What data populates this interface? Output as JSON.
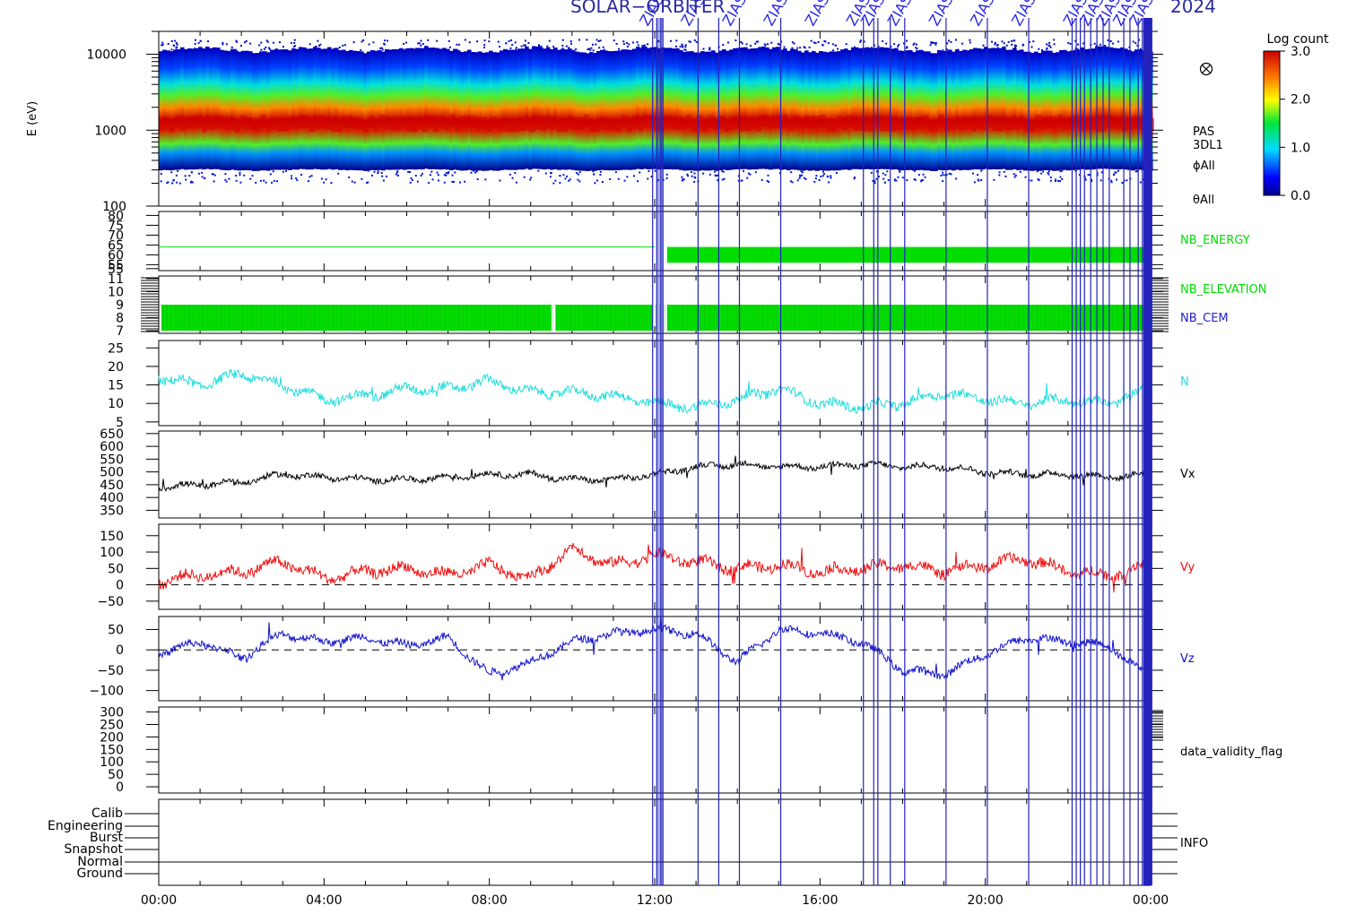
{
  "title_left": "SOLAR−ORBITER",
  "title_right": "2024",
  "colors": {
    "nb_energy": "#00dd00",
    "nb_elevation": "#00dd00",
    "nb_cem": "#2222cc",
    "n": "#22dddd",
    "vx": "#000000",
    "vy": "#ee1111",
    "vz": "#1111cc",
    "event_line": "#2222bb"
  },
  "icon": "circle-cross-icon",
  "event_label": "ZIAS",
  "chart_data": [
    {
      "type": "heatmap",
      "panel": "energy-spectrogram",
      "ylabel": "E (eV)",
      "yscale": "log",
      "ylim": [
        100,
        20000
      ],
      "yticks": [
        "10000",
        "1000",
        "100"
      ],
      "labels": [
        "PAS",
        "3DL1",
        "ϕAll",
        "θAll"
      ],
      "colorbar": {
        "title": "Log count",
        "range": [
          0.0,
          3.0
        ],
        "ticks": [
          "3.0",
          "2.0",
          "1.0",
          "0.0"
        ]
      },
      "peak_energy_ev": 1200
    },
    {
      "type": "line",
      "panel": "nb-energy",
      "series": [
        {
          "name": "NB_ENERGY"
        }
      ],
      "ylim": [
        52,
        82
      ],
      "yticks": [
        "80",
        "75",
        "70",
        "65",
        "60",
        "55",
        "55"
      ],
      "value_before_12h": 64,
      "band_after_12h": [
        56,
        64
      ]
    },
    {
      "type": "bar",
      "panel": "nb-elevation-cem",
      "series": [
        {
          "name": "NB_ELEVATION"
        },
        {
          "name": "NB_CEM"
        }
      ],
      "ylim": [
        6.8,
        11.2
      ],
      "yticks": [
        "11",
        "10",
        "9",
        "8",
        "7"
      ],
      "band": [
        7,
        9
      ]
    },
    {
      "type": "line",
      "panel": "density",
      "series": [
        {
          "name": "N",
          "points": [
            [
              0,
              17
            ],
            [
              1,
              15
            ],
            [
              2,
              18
            ],
            [
              3,
              15
            ],
            [
              4,
              11
            ],
            [
              5,
              12
            ],
            [
              6,
              14
            ],
            [
              7,
              14
            ],
            [
              8,
              16
            ],
            [
              9,
              13
            ],
            [
              10,
              13
            ],
            [
              11,
              12
            ],
            [
              12,
              10
            ],
            [
              13,
              9
            ],
            [
              14,
              11
            ],
            [
              15,
              14
            ],
            [
              16,
              10
            ],
            [
              17,
              9
            ],
            [
              18,
              10
            ],
            [
              19,
              13
            ],
            [
              20,
              11
            ],
            [
              21,
              10
            ],
            [
              22,
              11
            ],
            [
              23,
              10
            ],
            [
              24,
              14
            ]
          ]
        }
      ],
      "ylim": [
        4,
        27
      ],
      "yticks": [
        "25",
        "20",
        "15",
        "10",
        "5"
      ]
    },
    {
      "type": "line",
      "panel": "vx",
      "series": [
        {
          "name": "Vx",
          "points": [
            [
              0,
              440
            ],
            [
              1,
              450
            ],
            [
              2,
              460
            ],
            [
              3,
              490
            ],
            [
              4,
              480
            ],
            [
              5,
              470
            ],
            [
              6,
              470
            ],
            [
              7,
              480
            ],
            [
              8,
              490
            ],
            [
              9,
              490
            ],
            [
              10,
              470
            ],
            [
              11,
              470
            ],
            [
              12,
              490
            ],
            [
              13,
              520
            ],
            [
              14,
              530
            ],
            [
              15,
              520
            ],
            [
              16,
              520
            ],
            [
              17,
              530
            ],
            [
              18,
              520
            ],
            [
              19,
              520
            ],
            [
              20,
              500
            ],
            [
              21,
              490
            ],
            [
              22,
              490
            ],
            [
              23,
              480
            ],
            [
              24,
              490
            ]
          ]
        }
      ],
      "ylim": [
        320,
        660
      ],
      "yticks": [
        "650",
        "600",
        "550",
        "500",
        "450",
        "400",
        "350"
      ]
    },
    {
      "type": "line",
      "panel": "vy",
      "series": [
        {
          "name": "Vy",
          "points": [
            [
              0,
              10
            ],
            [
              1,
              30
            ],
            [
              2,
              40
            ],
            [
              3,
              70
            ],
            [
              4,
              20
            ],
            [
              5,
              40
            ],
            [
              6,
              50
            ],
            [
              7,
              30
            ],
            [
              8,
              60
            ],
            [
              9,
              20
            ],
            [
              10,
              110
            ],
            [
              11,
              60
            ],
            [
              12,
              90
            ],
            [
              13,
              70
            ],
            [
              14,
              50
            ],
            [
              15,
              60
            ],
            [
              16,
              40
            ],
            [
              17,
              50
            ],
            [
              18,
              60
            ],
            [
              19,
              40
            ],
            [
              20,
              60
            ],
            [
              21,
              80
            ],
            [
              22,
              40
            ],
            [
              23,
              30
            ],
            [
              24,
              60
            ]
          ]
        }
      ],
      "ylim": [
        -75,
        185
      ],
      "yticks": [
        "150",
        "100",
        "50",
        "0",
        "−50"
      ],
      "zero_line": "dashed"
    },
    {
      "type": "line",
      "panel": "vz",
      "series": [
        {
          "name": "Vz",
          "points": [
            [
              0,
              -10
            ],
            [
              1,
              20
            ],
            [
              2,
              -20
            ],
            [
              3,
              40
            ],
            [
              4,
              20
            ],
            [
              5,
              30
            ],
            [
              6,
              10
            ],
            [
              7,
              30
            ],
            [
              8,
              -60
            ],
            [
              9,
              -30
            ],
            [
              10,
              20
            ],
            [
              11,
              40
            ],
            [
              12,
              50
            ],
            [
              13,
              40
            ],
            [
              14,
              -30
            ],
            [
              15,
              50
            ],
            [
              16,
              40
            ],
            [
              17,
              20
            ],
            [
              18,
              -50
            ],
            [
              19,
              -60
            ],
            [
              20,
              -10
            ],
            [
              21,
              30
            ],
            [
              22,
              20
            ],
            [
              23,
              10
            ],
            [
              24,
              -70
            ]
          ]
        }
      ],
      "ylim": [
        -125,
        82
      ],
      "yticks": [
        "50",
        "0",
        "−50",
        "−100"
      ],
      "zero_line": "dashed"
    },
    {
      "type": "line",
      "panel": "data-validity",
      "series": [
        {
          "name": "data_validity_flag"
        }
      ],
      "ylim": [
        -25,
        320
      ],
      "yticks": [
        "300",
        "250",
        "200",
        "150",
        "100",
        "50",
        "0"
      ]
    },
    {
      "type": "table",
      "panel": "info",
      "series": [
        {
          "name": "INFO"
        }
      ],
      "categories": [
        "Calib",
        "Engineering",
        "Burst",
        "Snapshot",
        "Normal",
        "Ground"
      ]
    }
  ],
  "x_axis": {
    "range_hours": [
      0,
      24
    ],
    "ticks": [
      {
        "h": 0,
        "label": "00:00"
      },
      {
        "h": 4,
        "label": "04:00"
      },
      {
        "h": 8,
        "label": "08:00"
      },
      {
        "h": 12,
        "label": "12:00"
      },
      {
        "h": 16,
        "label": "16:00"
      },
      {
        "h": 20,
        "label": "20:00"
      },
      {
        "h": 24,
        "label": "00:00"
      }
    ]
  },
  "event_hours": [
    11.95,
    12.05,
    12.15,
    12.2,
    13.05,
    13.55,
    14.05,
    15.05,
    17.05,
    17.3,
    17.4,
    17.7,
    18.05,
    19.05,
    20.05,
    21.05,
    22.1,
    22.2,
    22.3,
    22.4,
    22.55,
    22.7,
    22.85,
    23.0,
    23.35,
    23.5,
    23.7,
    23.8,
    23.85,
    23.9,
    23.95,
    24.0
  ]
}
